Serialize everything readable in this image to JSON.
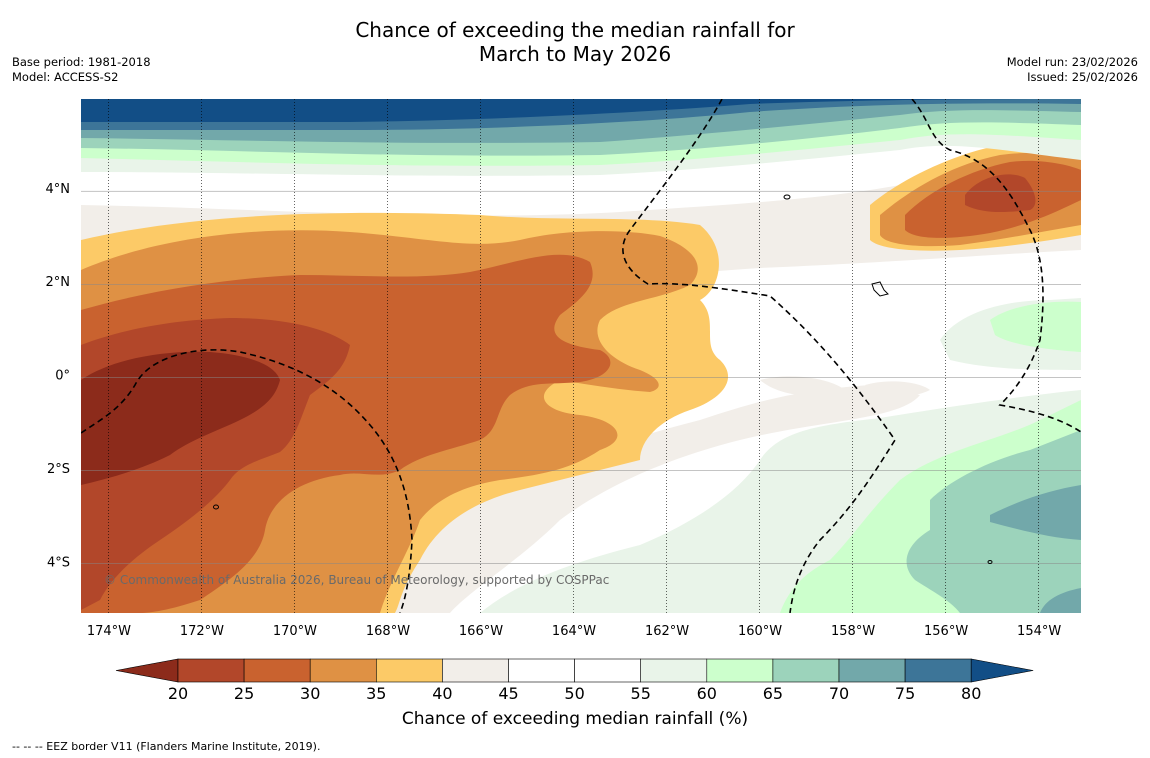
{
  "title": {
    "line1": "Chance of exceeding the median rainfall for",
    "line2": "March to May 2026"
  },
  "meta_left": {
    "base_period": "Base period: 1981-2018",
    "model": "Model: ACCESS-S2"
  },
  "meta_right": {
    "model_run": "Model run: 23/02/2026",
    "issued": "Issued: 25/02/2026"
  },
  "map": {
    "copyright": "© Commonwealth of Australia 2026, Bureau of Meteorology, supported by COSPPac",
    "lon_labels": [
      "174°W",
      "172°W",
      "170°W",
      "168°W",
      "166°W",
      "164°W",
      "162°W",
      "160°W",
      "158°W",
      "156°W",
      "154°W"
    ],
    "lon_values": [
      -174,
      -172,
      -170,
      -168,
      -166,
      -164,
      -162,
      -160,
      -158,
      -156,
      -154
    ],
    "lat_labels": [
      "4°N",
      "2°N",
      "0°",
      "2°S",
      "4°S"
    ],
    "lat_values": [
      4,
      2,
      0,
      -2,
      -4
    ],
    "extent": {
      "lon_min": -174.6,
      "lon_max": -153.1,
      "lat_min": -5.1,
      "lat_max": 5.9
    }
  },
  "colorbar": {
    "title": "Chance of exceeding median rainfall (%)",
    "tick_labels": [
      "20",
      "25",
      "30",
      "35",
      "40",
      "45",
      "50",
      "55",
      "60",
      "65",
      "70",
      "75",
      "80"
    ],
    "colors": [
      "#8c2b1b",
      "#b2472a",
      "#c9622f",
      "#df9144",
      "#fcca67",
      "#f2eee9",
      "#ffffff",
      "#ffffff",
      "#e9f4e9",
      "#ccffcc",
      "#9cd3bb",
      "#72a8aa",
      "#3d7598",
      "#124e86"
    ]
  },
  "footer": {
    "legend_text": "--  --  -- EEZ border V11 (Flanders Marine Institute, 2019)."
  }
}
